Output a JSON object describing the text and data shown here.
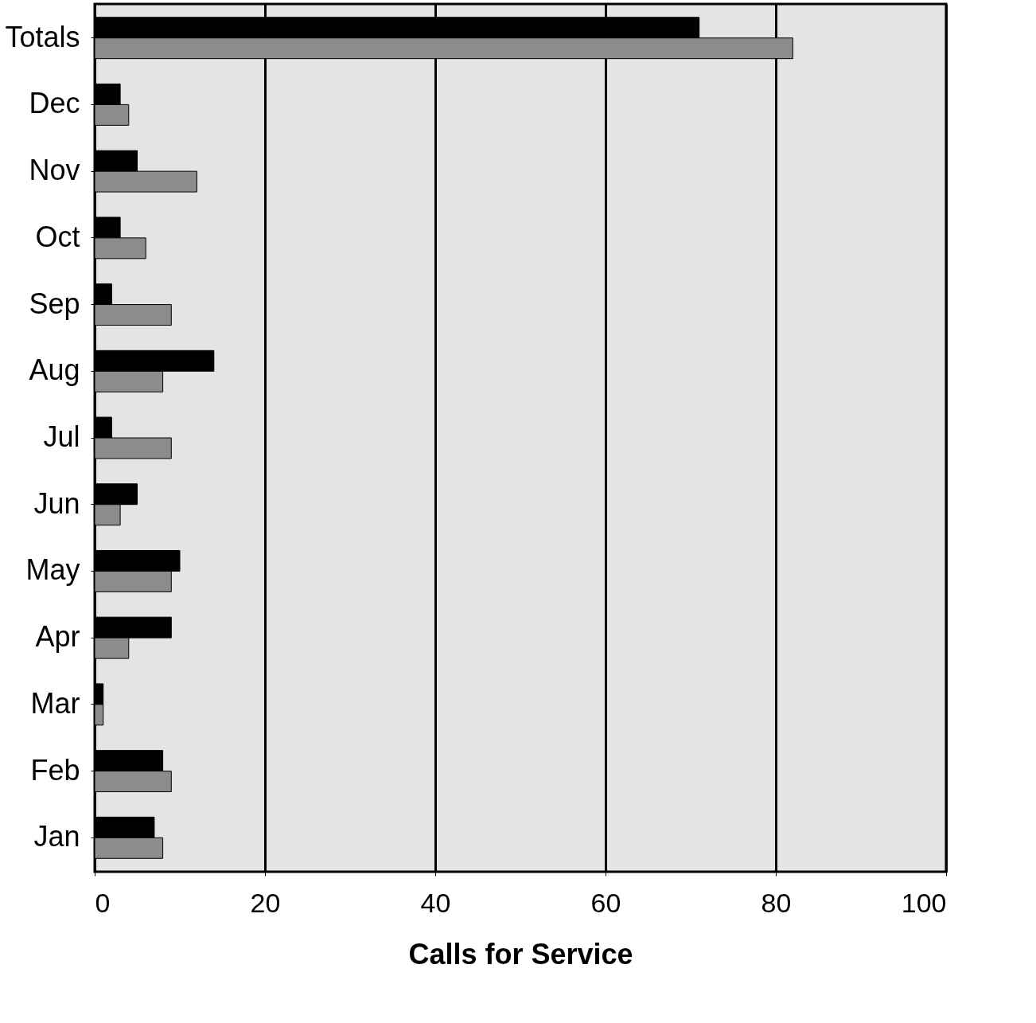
{
  "chart_data": {
    "type": "bar",
    "orientation": "horizontal",
    "xlabel": "Calls for Service",
    "categories": [
      "Totals",
      "Dec",
      "Nov",
      "Oct",
      "Sep",
      "Aug",
      "Jul",
      "Jun",
      "May",
      "Apr",
      "Mar",
      "Feb",
      "Jan"
    ],
    "series": [
      {
        "color": "#000000",
        "values": [
          71,
          3,
          5,
          3,
          2,
          14,
          2,
          5,
          10,
          9,
          1,
          8,
          7
        ]
      },
      {
        "color": "#8c8c8c",
        "values": [
          82,
          4,
          12,
          6,
          9,
          8,
          9,
          3,
          9,
          4,
          1,
          9,
          8
        ]
      }
    ],
    "xlim": [
      0,
      100
    ],
    "xticks": [
      0,
      20,
      40,
      60,
      80,
      100
    ],
    "grid": "x",
    "legend": false
  }
}
